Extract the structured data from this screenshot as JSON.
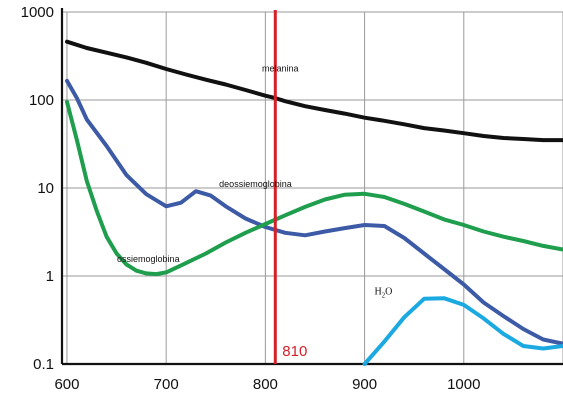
{
  "chart_data": {
    "type": "line",
    "title": "",
    "xlabel": "",
    "ylabel": "",
    "xlim": [
      595,
      1100
    ],
    "ylim": [
      0.1,
      1000
    ],
    "y_scale": "log",
    "grid": true,
    "x_ticks": [
      "600",
      "700",
      "800",
      "900",
      "1000"
    ],
    "y_ticks": [
      "1000",
      "100",
      "10",
      "1",
      "0.1"
    ],
    "series": [
      {
        "name": "melanina",
        "color": "#111111",
        "x": [
          600,
          620,
          640,
          660,
          680,
          700,
          720,
          740,
          760,
          780,
          800,
          810,
          820,
          840,
          860,
          880,
          900,
          920,
          940,
          960,
          980,
          1000,
          1020,
          1040,
          1060,
          1080,
          1100
        ],
        "y": [
          460,
          390,
          345,
          305,
          265,
          225,
          195,
          170,
          150,
          130,
          112,
          105,
          97,
          85,
          77,
          70,
          63,
          58,
          53,
          48,
          45,
          42,
          39,
          37,
          36,
          35,
          35
        ]
      },
      {
        "name": "deossiemoglobina",
        "color": "#3c5aa6",
        "x": [
          600,
          610,
          620,
          640,
          660,
          680,
          700,
          715,
          730,
          745,
          760,
          780,
          800,
          820,
          840,
          860,
          880,
          900,
          920,
          940,
          960,
          980,
          1000,
          1020,
          1040,
          1060,
          1080,
          1100
        ],
        "y": [
          165,
          105,
          60,
          30,
          14,
          8.5,
          6.2,
          6.8,
          9.2,
          8.2,
          6.2,
          4.5,
          3.6,
          3.1,
          2.9,
          3.2,
          3.5,
          3.8,
          3.7,
          2.7,
          1.8,
          1.2,
          0.8,
          0.5,
          0.35,
          0.25,
          0.19,
          0.17
        ]
      },
      {
        "name": "ossiemoglobina",
        "color": "#1f9e4d",
        "x": [
          600,
          610,
          620,
          630,
          640,
          650,
          660,
          670,
          680,
          690,
          700,
          720,
          740,
          760,
          780,
          800,
          820,
          840,
          860,
          880,
          900,
          920,
          940,
          960,
          980,
          1000,
          1020,
          1040,
          1060,
          1080,
          1100
        ],
        "y": [
          95,
          35,
          12,
          5.5,
          2.8,
          1.8,
          1.35,
          1.15,
          1.07,
          1.05,
          1.1,
          1.4,
          1.8,
          2.4,
          3.1,
          3.9,
          4.9,
          6.1,
          7.4,
          8.4,
          8.6,
          7.9,
          6.6,
          5.4,
          4.4,
          3.8,
          3.2,
          2.8,
          2.5,
          2.2,
          2.0
        ]
      },
      {
        "name": "H2O",
        "color": "#1aa9e0",
        "x": [
          900,
          920,
          940,
          960,
          980,
          1000,
          1020,
          1040,
          1060,
          1080,
          1100
        ],
        "y": [
          0.1,
          0.18,
          0.34,
          0.55,
          0.56,
          0.47,
          0.33,
          0.22,
          0.16,
          0.15,
          0.16
        ]
      }
    ],
    "annotations": [
      {
        "text": "melanina",
        "x": 815,
        "y": 210
      },
      {
        "text": "deossiemoglobina",
        "x": 790,
        "y": 10.2
      },
      {
        "text": "ossiemoglobina",
        "x": 682,
        "y": 1.45
      },
      {
        "text_main": "H",
        "text_sub": "2",
        "text_end": "O",
        "x": 919,
        "y": 0.62
      }
    ],
    "vertical_marker": {
      "label": "810",
      "x": 810,
      "color": "#d62028"
    }
  }
}
